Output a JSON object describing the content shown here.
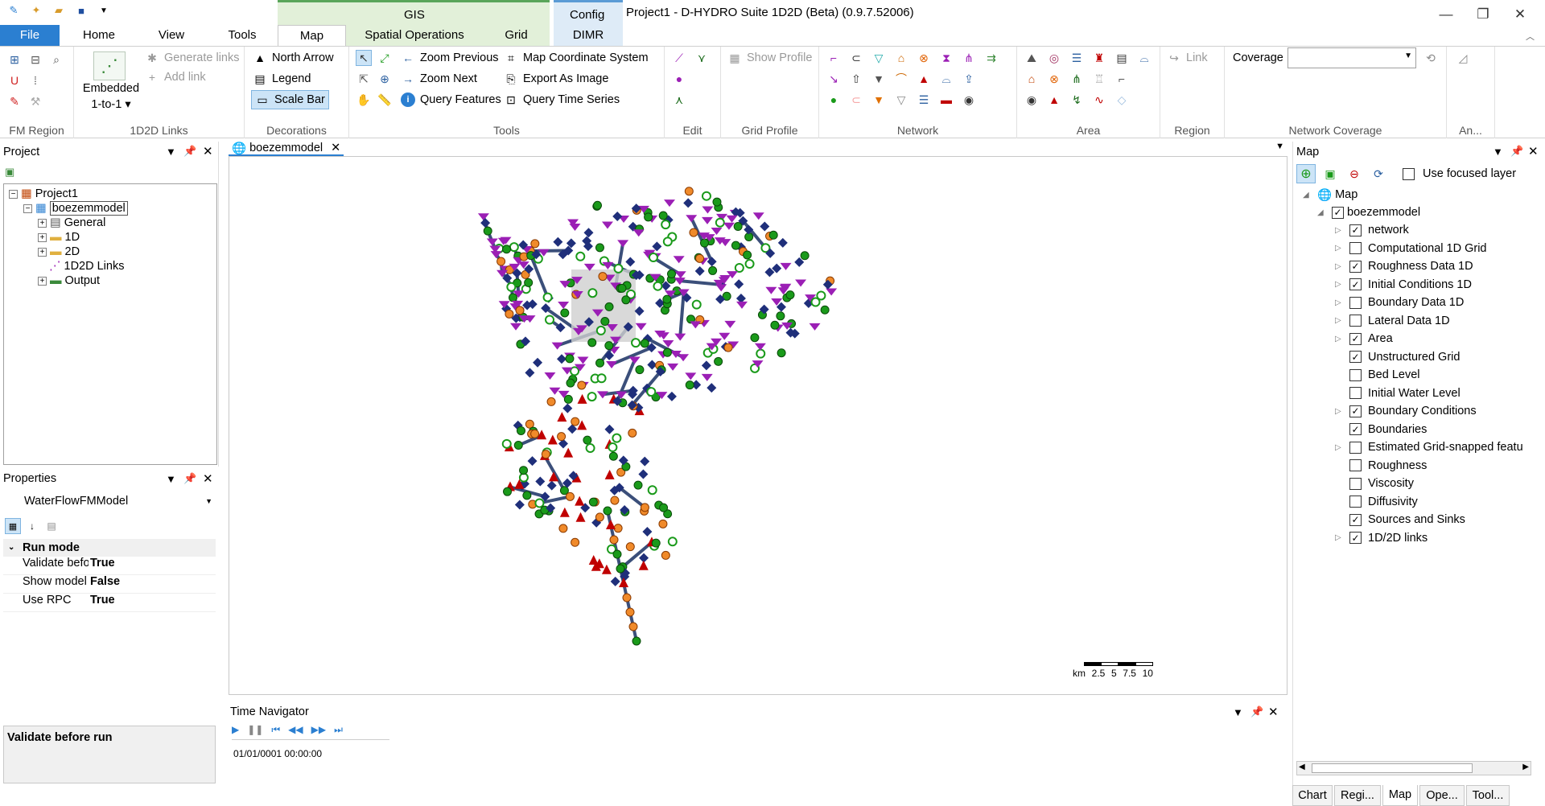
{
  "window": {
    "title": "Project1 - D-HYDRO Suite 1D2D (Beta) (0.9.7.52006)"
  },
  "context_tabs": {
    "gis": "GIS",
    "config": "Config"
  },
  "tabs": {
    "file": "File",
    "home": "Home",
    "view": "View",
    "tools": "Tools",
    "map": "Map",
    "spatial": "Spatial Operations",
    "grid": "Grid",
    "dimr": "DIMR"
  },
  "ribbon": {
    "groups": {
      "fm_region": "FM Region",
      "links": "1D2D Links",
      "decorations": "Decorations",
      "tools": "Tools",
      "edit": "Edit",
      "grid_profile": "Grid Profile",
      "network": "Network",
      "area": "Area",
      "region": "Region",
      "coverage": "Network Coverage",
      "an": "An..."
    },
    "embedded": "Embedded",
    "one_to_one": "1-to-1 ▾",
    "generate_links": "Generate links",
    "add_link": "Add link",
    "north_arrow": "North Arrow",
    "legend": "Legend",
    "scale_bar": "Scale Bar",
    "zoom_previous": "Zoom Previous",
    "zoom_next": "Zoom Next",
    "query_features": "Query Features",
    "map_coord": "Map Coordinate System",
    "export_image": "Export As Image",
    "query_time": "Query Time Series",
    "show_profile": "Show Profile",
    "link": "Link",
    "coverage": "Coverage"
  },
  "project_panel": {
    "title": "Project",
    "items": [
      "Project1",
      "boezemmodel",
      "General",
      "1D",
      "2D",
      "1D2D Links",
      "Output"
    ]
  },
  "properties_panel": {
    "title": "Properties",
    "object": "WaterFlowFMModel",
    "category": "Run mode",
    "rows": [
      {
        "k": "Validate before",
        "v": "True"
      },
      {
        "k": "Show model ru",
        "v": "False"
      },
      {
        "k": "Use RPC",
        "v": "True"
      }
    ],
    "description": "Validate before run"
  },
  "document_tab": {
    "label": "boezemmodel"
  },
  "scale": {
    "unit": "km",
    "ticks": [
      "2.5",
      "5",
      "7.5",
      "10"
    ]
  },
  "time_navigator": {
    "title": "Time Navigator",
    "time": "01/01/0001 00:00:00"
  },
  "map_panel": {
    "title": "Map",
    "use_focused": "Use focused layer",
    "root": "Map",
    "model": "boezemmodel",
    "layers": [
      {
        "name": "network",
        "checked": true,
        "expand": true
      },
      {
        "name": "Computational 1D Grid",
        "checked": false,
        "expand": true
      },
      {
        "name": "Roughness Data 1D",
        "checked": true,
        "expand": true
      },
      {
        "name": "Initial Conditions 1D",
        "checked": true,
        "expand": true
      },
      {
        "name": "Boundary Data 1D",
        "checked": false,
        "expand": true
      },
      {
        "name": "Lateral Data 1D",
        "checked": false,
        "expand": true
      },
      {
        "name": "Area",
        "checked": true,
        "expand": true
      },
      {
        "name": "Unstructured Grid",
        "checked": true,
        "expand": false
      },
      {
        "name": "Bed Level",
        "checked": false,
        "expand": false
      },
      {
        "name": "Initial Water Level",
        "checked": false,
        "expand": false
      },
      {
        "name": "Boundary Conditions",
        "checked": true,
        "expand": true
      },
      {
        "name": "Boundaries",
        "checked": true,
        "expand": false
      },
      {
        "name": "Estimated Grid-snapped featu",
        "checked": false,
        "expand": true
      },
      {
        "name": "Roughness",
        "checked": false,
        "expand": false
      },
      {
        "name": "Viscosity",
        "checked": false,
        "expand": false
      },
      {
        "name": "Diffusivity",
        "checked": false,
        "expand": false
      },
      {
        "name": "Sources and Sinks",
        "checked": true,
        "expand": false
      },
      {
        "name": "1D/2D links",
        "checked": true,
        "expand": true
      }
    ]
  },
  "bottom_tabs": [
    "Chart",
    "Regi...",
    "Map",
    "Ope...",
    "Tool..."
  ],
  "colors": {
    "accent": "#2b7fd1",
    "gis_ctx": "#e2f0d9",
    "config_ctx": "#deebf7",
    "network_green": "#1a9a1a",
    "marker_red": "#c00000",
    "marker_purple": "#9b1fb5",
    "marker_navy": "#1f2f7a"
  }
}
